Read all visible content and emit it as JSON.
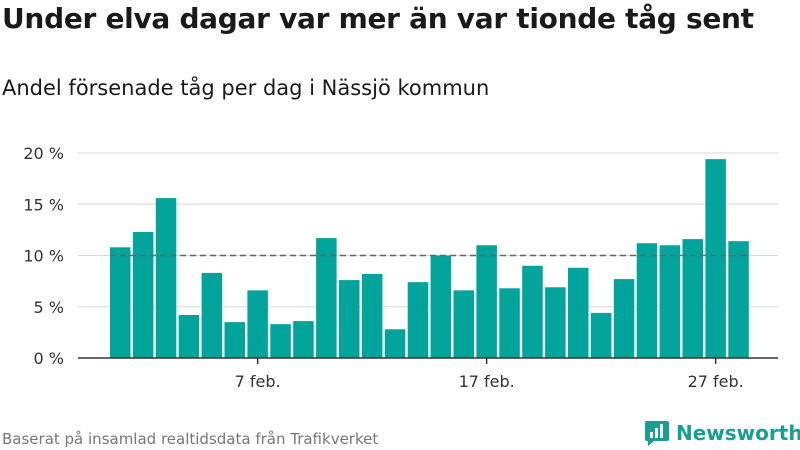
{
  "title": "Under elva dagar var mer än var tionde tåg sent",
  "subtitle": "Andel försenade tåg per dag i Nässjö kommun",
  "footer": "Baserat på insamlad realtidsdata från Trafikverket",
  "brand": {
    "name": "Newsworthy",
    "icon": "newsworthy-logo-icon"
  },
  "colors": {
    "bar": "#00a49a",
    "grid": "#d8d8d8",
    "reference": "#666666",
    "brand": "#15a08f"
  },
  "chart_data": {
    "type": "bar",
    "x": [
      "2/1",
      "2/2",
      "2/3",
      "2/4",
      "2/5",
      "2/6",
      "2/7",
      "2/8",
      "2/9",
      "2/10",
      "2/11",
      "2/12",
      "2/13",
      "2/14",
      "2/15",
      "2/16",
      "2/17",
      "2/18",
      "2/19",
      "2/20",
      "2/21",
      "2/22",
      "2/23",
      "2/24",
      "2/25",
      "2/26",
      "2/27",
      "2/28"
    ],
    "values": [
      10.8,
      12.3,
      15.6,
      4.2,
      8.3,
      3.5,
      6.6,
      3.3,
      3.6,
      11.7,
      7.6,
      8.2,
      2.8,
      7.4,
      10.0,
      6.6,
      11.0,
      6.8,
      9.0,
      6.9,
      8.8,
      4.4,
      7.7,
      11.2,
      11.0,
      11.6,
      19.4,
      11.4
    ],
    "ylim": [
      0,
      20
    ],
    "yticks": [
      0,
      5,
      10,
      15,
      20
    ],
    "ytick_labels": [
      "0 %",
      "5 %",
      "10 %",
      "15 %",
      "20 %"
    ],
    "xticks": [
      {
        "label": "7 feb.",
        "index": 6
      },
      {
        "label": "17 feb.",
        "index": 16
      },
      {
        "label": "27 feb.",
        "index": 26
      }
    ],
    "reference_line": 10,
    "grid": true,
    "legend": "none"
  }
}
